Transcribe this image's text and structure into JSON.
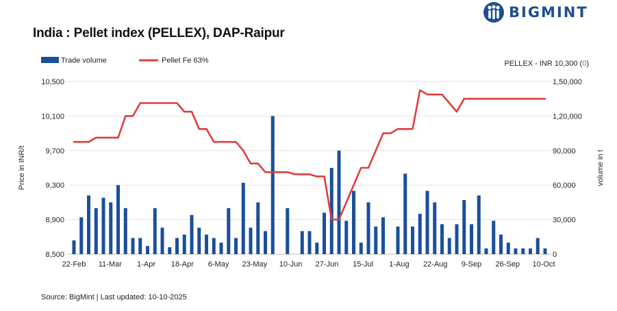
{
  "title": "India : Pellet index (PELLEX), DAP-Raipur",
  "brand": "BIGMINT",
  "source": "Source: BigMint | Last updated: 10-10-2025",
  "info": {
    "label": "PELLEX - INR 10,300 (",
    "change": "0",
    "close": ")",
    "change_color": "#2e9e3a"
  },
  "colors": {
    "bar": "#1a4f9c",
    "line": "#e03c3c",
    "brand": "#1d4f91"
  },
  "chart_data": {
    "type": "bar+line",
    "title": "India : Pellet index (PELLEX), DAP-Raipur",
    "ylabel_left": "Price in INR/t",
    "ylabel_right": "volume in t",
    "ylim_left": [
      8500,
      10500
    ],
    "ylim_right": [
      0,
      150000
    ],
    "yticks_left": [
      "8,500",
      "8,900",
      "9,300",
      "9,700",
      "10,100",
      "10,500"
    ],
    "yticks_right": [
      "0",
      "30,000",
      "60,000",
      "90,000",
      "1,20,000",
      "1,50,000"
    ],
    "xtick_labels": [
      "22-Feb",
      "11-Mar",
      "1-Apr",
      "18-Apr",
      "6-May",
      "23-May",
      "10-Jun",
      "27-Jun",
      "15-Jul",
      "1-Aug",
      "22-Aug",
      "9-Sep",
      "26-Sep",
      "10-Oct"
    ],
    "legend": [
      "Trade volume",
      "Pellet Fe 63%"
    ],
    "grid": "horizontal",
    "series": [
      {
        "name": "Trade volume",
        "type": "bar",
        "axis": "right",
        "values": [
          12000,
          32000,
          51000,
          40000,
          49000,
          45000,
          60000,
          40000,
          14000,
          14000,
          7000,
          40000,
          23000,
          6000,
          14000,
          17000,
          34000,
          23000,
          17000,
          14000,
          10000,
          40000,
          14000,
          62000,
          23000,
          45000,
          20000,
          120000,
          0,
          40000,
          0,
          20000,
          20000,
          10000,
          36000,
          75000,
          90000,
          29000,
          55000,
          10000,
          45000,
          24000,
          32000,
          0,
          24000,
          70000,
          24000,
          35000,
          55000,
          45000,
          26000,
          14000,
          26000,
          47000,
          26000,
          51000,
          5000,
          29000,
          17000,
          10000,
          5000,
          5000,
          5000,
          14000,
          5000
        ]
      },
      {
        "name": "Pellet Fe 63%",
        "type": "line",
        "axis": "left",
        "values": [
          9800,
          9800,
          9800,
          9850,
          9850,
          9850,
          9850,
          10100,
          10100,
          10250,
          10250,
          10250,
          10250,
          10250,
          10250,
          10150,
          10150,
          9950,
          9950,
          9800,
          9800,
          9800,
          9800,
          9700,
          9550,
          9550,
          9450,
          9450,
          9450,
          9450,
          9425,
          9425,
          9425,
          9400,
          9400,
          8900,
          8900,
          9100,
          9300,
          9500,
          9500,
          9700,
          9900,
          9900,
          9950,
          9950,
          9950,
          10400,
          10350,
          10350,
          10350,
          10250,
          10150,
          10300,
          10300,
          10300,
          10300,
          10300,
          10300,
          10300,
          10300,
          10300,
          10300,
          10300,
          10300
        ]
      }
    ]
  }
}
